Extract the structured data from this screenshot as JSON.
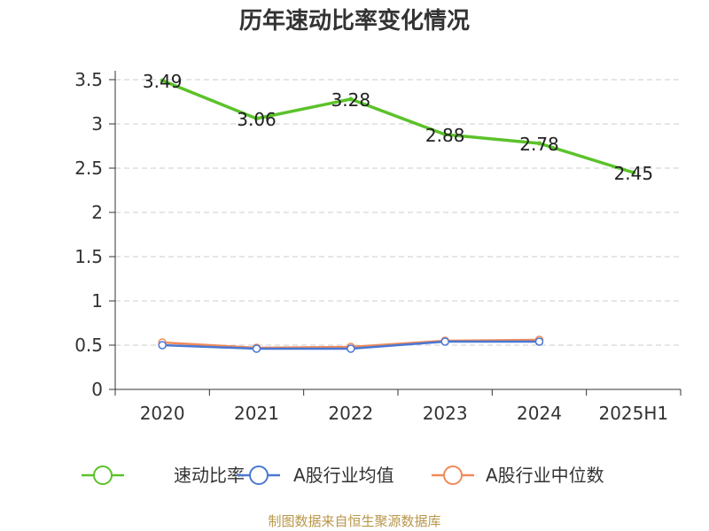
{
  "chart_data": {
    "type": "line",
    "title": "历年速动比率变化情况",
    "categories": [
      "2020",
      "2021",
      "2022",
      "2023",
      "2024",
      "2025H1"
    ],
    "ylim": [
      0,
      3.5
    ],
    "yticks": [
      "0",
      "0.5",
      "1",
      "1.5",
      "2",
      "2.5",
      "3",
      "3.5"
    ],
    "grid": true,
    "legend_position": "bottom",
    "series": [
      {
        "name": "速动比率",
        "color": "#5bc22a",
        "values": [
          3.49,
          3.06,
          3.28,
          2.88,
          2.78,
          2.45
        ],
        "labels": [
          "3.49",
          "3.06",
          "3.28",
          "2.88",
          "2.78",
          "2.45"
        ]
      },
      {
        "name": "A股行业均值",
        "color": "#4a78d4",
        "values": [
          0.5,
          0.46,
          0.46,
          0.54,
          0.54,
          null
        ]
      },
      {
        "name": "A股行业中位数",
        "color": "#f08a5a",
        "values": [
          0.53,
          0.47,
          0.48,
          0.55,
          0.56,
          null
        ]
      }
    ]
  },
  "footer": {
    "source": "制图数据来自恒生聚源数据库"
  }
}
